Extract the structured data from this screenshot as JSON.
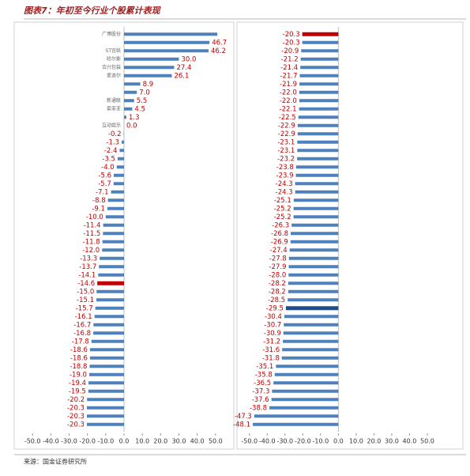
{
  "title": "图表7：年初至今行业个股累计表现",
  "source": "来源：国金证券研究所",
  "chart_data": [
    {
      "type": "bar",
      "orientation": "horizontal",
      "categories": [
        "广博股份",
        null,
        "ST宜纸",
        "哈尔斯",
        "合兴包装",
        "爱迪尔",
        null,
        null,
        "新通联",
        "索菲亚",
        null,
        "互动娱乐",
        null,
        null,
        null,
        null,
        null,
        null,
        null,
        null,
        null,
        null,
        null,
        null,
        null,
        null,
        null,
        null,
        null,
        null,
        null,
        null,
        null,
        null,
        null,
        null,
        null,
        null,
        null,
        null,
        null,
        null,
        null,
        null,
        null,
        null,
        null,
        null
      ],
      "values": [
        51,
        46.7,
        46.2,
        30.0,
        27.4,
        26.1,
        8.9,
        7.0,
        5.5,
        4.5,
        1.3,
        0.0,
        -0.2,
        -1.3,
        -2.4,
        -3.5,
        -4.0,
        -5.6,
        -5.7,
        -7.1,
        -8.8,
        -9.1,
        -10.0,
        -11.4,
        -11.5,
        -11.8,
        -12.0,
        -13.3,
        -13.7,
        -14.1,
        -14.6,
        -15.0,
        -15.1,
        -15.7,
        -16.1,
        -16.7,
        -16.8,
        -17.8,
        -18.6,
        -18.6,
        -18.8,
        -19.0,
        -19.4,
        -19.5,
        -20.2,
        -20.3,
        -20.3,
        -20.3
      ],
      "value_labels": [
        null,
        "46.7",
        "46.2",
        "30.0",
        "27.4",
        "26.1",
        "8.9",
        "7.0",
        "5.5",
        "4.5",
        "1.3",
        "0.0",
        "-0.2",
        "-1.3",
        "-2.4",
        "-3.5",
        "-4.0",
        "-5.6",
        "-5.7",
        "-7.1",
        "-8.8",
        "-9.1",
        "-10.0",
        "-11.4",
        "-11.5",
        "-11.8",
        "-12.0",
        "-13.3",
        "-13.7",
        "-14.1",
        "-14.6",
        "-15.0",
        "-15.1",
        "-15.7",
        "-16.1",
        "-16.7",
        "-16.8",
        "-17.8",
        "-18.6",
        "-18.6",
        "-18.8",
        "-19.0",
        "-19.4",
        "-19.5",
        "-20.2",
        "-20.3",
        "-20.3",
        "-20.3"
      ],
      "color": "#4f81bd",
      "highlight_color": "#c00000",
      "highlight": [
        30
      ],
      "xlim": [
        -60,
        60
      ],
      "xticks": [
        {
          "value": -50,
          "label": "-50.0"
        },
        {
          "value": -40,
          "label": "-40.0"
        },
        {
          "value": -30,
          "label": "-30.0"
        },
        {
          "value": -20,
          "label": "-20.0"
        },
        {
          "value": -10,
          "label": "-10.0"
        },
        {
          "value": 0,
          "label": "0.0"
        },
        {
          "value": 10,
          "label": "10.0"
        },
        {
          "value": 20,
          "label": "20.0"
        },
        {
          "value": 30,
          "label": "30.0"
        },
        {
          "value": 40,
          "label": "40.0"
        },
        {
          "value": 50,
          "label": "50.0"
        }
      ]
    },
    {
      "type": "bar",
      "orientation": "horizontal",
      "categories": [
        null,
        null,
        null,
        null,
        null,
        null,
        null,
        null,
        null,
        null,
        null,
        null,
        null,
        null,
        null,
        null,
        null,
        null,
        null,
        null,
        null,
        null,
        null,
        null,
        null,
        null,
        null,
        null,
        null,
        null,
        null,
        null,
        null,
        null,
        null,
        null,
        null,
        null,
        null,
        null,
        null,
        null,
        null,
        null,
        null,
        null,
        null,
        null
      ],
      "values": [
        -20.3,
        -20.3,
        -20.9,
        -21.2,
        -21.4,
        -21.7,
        -21.9,
        -22.0,
        -22.0,
        -22.1,
        -22.5,
        -22.9,
        -22.9,
        -23.1,
        -23.1,
        -23.2,
        -23.8,
        -23.9,
        -24.3,
        -24.3,
        -25.1,
        -25.2,
        -25.2,
        -26.3,
        -26.8,
        -26.9,
        -27.4,
        -27.8,
        -27.9,
        -28.0,
        -28.2,
        -28.2,
        -28.5,
        -29.5,
        -30.4,
        -30.7,
        -30.9,
        -31.2,
        -31.6,
        -31.8,
        -35.1,
        -35.8,
        -36.5,
        -37.3,
        -37.6,
        -38.8,
        -47.3,
        -48.1
      ],
      "value_labels": [
        "-20.3",
        "-20.3",
        "-20.9",
        "-21.2",
        "-21.4",
        "-21.7",
        "-21.9",
        "-22.0",
        "-22.0",
        "-22.1",
        "-22.5",
        "-22.9",
        "-22.9",
        "-23.1",
        "-23.1",
        "-23.2",
        "-23.8",
        "-23.9",
        "-24.3",
        "-24.3",
        "-25.1",
        "-25.2",
        "-25.2",
        "-26.3",
        "-26.8",
        "-26.9",
        "-27.4",
        "-27.8",
        "-27.9",
        "-28.0",
        "-28.2",
        "-28.2",
        "-28.5",
        "-29.5",
        "-30.4",
        "-30.7",
        "-30.9",
        "-31.2",
        "-31.6",
        "-31.8",
        "-35.1",
        "-35.8",
        "-36.5",
        "-37.3",
        "-37.6",
        "-38.8",
        "-47.3",
        "-48.1"
      ],
      "color": "#4f81bd",
      "highlight_color": "#c00000",
      "secondary_highlight_color": "#1f4e8c",
      "highlight": [
        0
      ],
      "secondary_highlight": [
        33
      ],
      "xlim": [
        -57,
        70
      ],
      "xticks": [
        {
          "value": -50,
          "label": "-50.0"
        },
        {
          "value": -40,
          "label": "-40.0"
        },
        {
          "value": -30,
          "label": "-30.0"
        },
        {
          "value": -20,
          "label": "-20.0"
        },
        {
          "value": -10,
          "label": "-10.0"
        },
        {
          "value": 0,
          "label": "0.0"
        },
        {
          "value": 10,
          "label": "10.0"
        },
        {
          "value": 20,
          "label": "20.0"
        },
        {
          "value": 30,
          "label": "30.0"
        },
        {
          "value": 40,
          "label": "40.0"
        },
        {
          "value": 50,
          "label": "50.0"
        }
      ]
    }
  ]
}
